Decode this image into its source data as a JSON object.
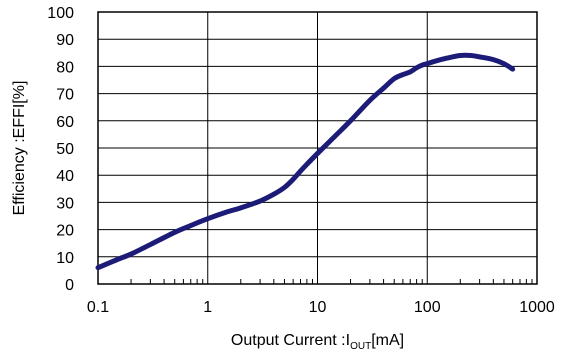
{
  "chart_data": {
    "type": "line",
    "x_scale": "log",
    "y_scale": "linear",
    "xlim": [
      0.1,
      1000
    ],
    "ylim": [
      0,
      100
    ],
    "grid": true,
    "legend": "none",
    "xlabel_main": "Output Current :I",
    "xlabel_sub": "OUT",
    "xlabel_unit": "[mA]",
    "ylabel": "Efficiency :EFFI[%]",
    "x_ticks": [
      "0.1",
      "1",
      "10",
      "100",
      "1000"
    ],
    "y_ticks": [
      "0",
      "10",
      "20",
      "30",
      "40",
      "50",
      "60",
      "70",
      "80",
      "90",
      "100"
    ],
    "line_color": "#1c1c78",
    "series": [
      {
        "x": [
          0.1,
          0.15,
          0.2,
          0.3,
          0.5,
          0.7,
          1,
          1.5,
          2,
          3,
          4,
          5,
          6,
          7,
          8,
          10,
          15,
          20,
          30,
          40,
          50,
          60,
          70,
          80,
          90,
          100,
          120,
          150,
          200,
          250,
          300,
          400,
          500,
          600
        ],
        "y": [
          6,
          9,
          11,
          14.5,
          19,
          21.5,
          24,
          26.5,
          28,
          30.5,
          33,
          35.5,
          38.5,
          41.5,
          44,
          48,
          55,
          60,
          67.5,
          72,
          75.5,
          77,
          78,
          79.5,
          80.5,
          81,
          82,
          83,
          84,
          84,
          83.5,
          82.5,
          81,
          79
        ]
      }
    ]
  }
}
